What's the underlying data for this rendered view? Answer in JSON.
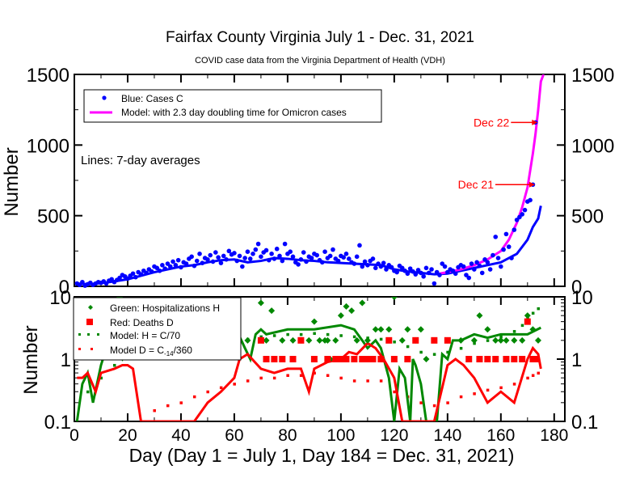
{
  "chart_data": [
    {
      "type": "scatter",
      "title": "Fairfax County Virginia July 1 - Dec. 31, 2021",
      "subtitle": "COVID case data from the Virginia Department of Health (VDH)",
      "xlabel": "",
      "ylabel": "Number",
      "xlim": [
        0,
        184
      ],
      "ylim": [
        0,
        1500
      ],
      "yticks": [
        "0",
        "500",
        "1000",
        "1500"
      ],
      "note": "Lines: 7-day averages",
      "legend_position": "top-left",
      "legend": [
        {
          "label": "Blue: Cases C",
          "color": "#0000ff",
          "marker": "dot"
        },
        {
          "label": "Model: with 2.3 day doubling time for Omicron cases",
          "color": "#ff00ff",
          "marker": "line"
        }
      ],
      "annotations": [
        {
          "text": "Dec 22",
          "x": 175,
          "y": 1160,
          "color": "#ff0000"
        },
        {
          "text": "Dec 21",
          "x": 174,
          "y": 720,
          "color": "#ff0000"
        }
      ],
      "series": [
        {
          "name": "Cases C",
          "color": "#0000ff",
          "x": [
            1,
            2,
            3,
            4,
            5,
            6,
            7,
            8,
            9,
            10,
            11,
            12,
            13,
            14,
            15,
            16,
            17,
            18,
            19,
            20,
            21,
            22,
            23,
            24,
            25,
            26,
            27,
            28,
            29,
            30,
            31,
            32,
            33,
            34,
            35,
            36,
            37,
            38,
            39,
            40,
            41,
            42,
            43,
            44,
            45,
            46,
            47,
            48,
            49,
            50,
            51,
            52,
            53,
            54,
            55,
            56,
            57,
            58,
            59,
            60,
            61,
            62,
            63,
            64,
            65,
            66,
            67,
            68,
            69,
            70,
            71,
            72,
            73,
            74,
            75,
            76,
            77,
            78,
            79,
            80,
            81,
            82,
            83,
            84,
            85,
            86,
            87,
            88,
            89,
            90,
            91,
            92,
            93,
            94,
            95,
            96,
            97,
            98,
            99,
            100,
            101,
            102,
            103,
            104,
            105,
            106,
            107,
            108,
            109,
            110,
            111,
            112,
            113,
            114,
            115,
            116,
            117,
            118,
            119,
            120,
            121,
            122,
            123,
            124,
            125,
            126,
            127,
            128,
            129,
            130,
            131,
            132,
            133,
            134,
            135,
            136,
            137,
            138,
            139,
            140,
            141,
            142,
            143,
            144,
            145,
            146,
            147,
            148,
            149,
            150,
            151,
            152,
            153,
            154,
            155,
            156,
            157,
            158,
            159,
            160,
            161,
            162,
            163,
            164,
            165,
            166,
            167,
            168,
            169,
            170,
            171,
            172,
            173,
            174,
            175
          ],
          "values": [
            20,
            10,
            30,
            5,
            15,
            25,
            10,
            20,
            30,
            25,
            35,
            20,
            40,
            50,
            30,
            45,
            60,
            80,
            70,
            55,
            75,
            90,
            65,
            100,
            85,
            110,
            95,
            120,
            105,
            140,
            130,
            110,
            150,
            125,
            160,
            140,
            175,
            150,
            185,
            135,
            170,
            160,
            195,
            210,
            145,
            180,
            230,
            165,
            200,
            190,
            220,
            175,
            240,
            205,
            165,
            215,
            190,
            250,
            225,
            235,
            180,
            215,
            140,
            200,
            245,
            195,
            230,
            260,
            300,
            210,
            240,
            255,
            185,
            230,
            195,
            265,
            215,
            180,
            300,
            230,
            245,
            210,
            170,
            155,
            190,
            240,
            175,
            210,
            200,
            230,
            220,
            185,
            170,
            245,
            200,
            215,
            260,
            195,
            180,
            215,
            205,
            230,
            195,
            170,
            160,
            210,
            290,
            140,
            175,
            150,
            180,
            195,
            130,
            160,
            140,
            165,
            120,
            150,
            135,
            110,
            100,
            145,
            130,
            110,
            90,
            125,
            105,
            85,
            115,
            95,
            70,
            130,
            95,
            120,
            20,
            100,
            80,
            160,
            140,
            100,
            120,
            110,
            90,
            135,
            150,
            140,
            80,
            60,
            160,
            120,
            170,
            145,
            95,
            190,
            170,
            120,
            220,
            350,
            200,
            140,
            260,
            370,
            280,
            200,
            400,
            470,
            490,
            510,
            540,
            600,
            610,
            720,
            1160,
            null,
            null
          ]
        },
        {
          "name": "Cases 7-day avg",
          "color": "#0000ff",
          "x": [
            1,
            5,
            10,
            15,
            20,
            25,
            30,
            35,
            40,
            45,
            50,
            55,
            60,
            65,
            70,
            75,
            80,
            85,
            90,
            95,
            100,
            105,
            110,
            115,
            120,
            125,
            130,
            135,
            140,
            145,
            150,
            155,
            160,
            163,
            166,
            168,
            170,
            172,
            174,
            175
          ],
          "values": [
            20,
            15,
            22,
            35,
            50,
            75,
            100,
            120,
            140,
            150,
            170,
            185,
            190,
            170,
            180,
            200,
            195,
            185,
            180,
            170,
            165,
            160,
            155,
            150,
            120,
            105,
            95,
            85,
            90,
            110,
            130,
            150,
            170,
            200,
            230,
            280,
            330,
            420,
            480,
            570
          ]
        },
        {
          "name": "Model (2.3 day doubling)",
          "color": "#ff00ff",
          "x": [
            137,
            140,
            145,
            150,
            155,
            160,
            163,
            166,
            168,
            170,
            172,
            173,
            174,
            175,
            176
          ],
          "values": [
            90,
            100,
            120,
            150,
            190,
            250,
            330,
            450,
            560,
            700,
            940,
            1080,
            1250,
            1450,
            1500
          ]
        }
      ]
    },
    {
      "type": "scatter",
      "xlabel": "Day (Day 1 = July 1, Day 184 = Dec. 31, 2021)",
      "ylabel": "Number",
      "yscale": "log",
      "xlim": [
        0,
        184
      ],
      "ylim": [
        0.1,
        10
      ],
      "xticks": [
        "0",
        "20",
        "40",
        "60",
        "80",
        "100",
        "120",
        "140",
        "160",
        "180"
      ],
      "yticks": [
        "0.1",
        "1",
        "10"
      ],
      "legend_position": "top-left",
      "legend": [
        {
          "label": "Green: Hospitalizations H",
          "color": "#008800",
          "marker": "diamond"
        },
        {
          "label": "Red: Deaths D",
          "color": "#ff0000",
          "marker": "square"
        },
        {
          "label": "Model: H = C/70",
          "color": "#008800",
          "marker": "dotted"
        },
        {
          "label": "Model D = C",
          "sub": "-14",
          "suffix": "/360",
          "color": "#ff0000",
          "marker": "dotted"
        }
      ],
      "series": [
        {
          "name": "Hospitalizations H",
          "color": "#008800",
          "marker": "diamond",
          "x": [
            17,
            65,
            70,
            72,
            74,
            78,
            82,
            85,
            88,
            90,
            92,
            94,
            95,
            96,
            98,
            100,
            102,
            104,
            106,
            108,
            110,
            113,
            115,
            118,
            120,
            123,
            125,
            128,
            130,
            132,
            140,
            145,
            150,
            152,
            155,
            158,
            160,
            162,
            165,
            168,
            170,
            172,
            174
          ],
          "values": [
            10,
            2,
            8,
            2,
            6,
            2,
            2,
            2,
            2,
            4,
            2,
            2,
            2,
            1,
            2,
            5,
            7,
            6,
            2,
            8,
            2,
            3,
            3,
            3,
            10,
            2,
            3,
            2,
            3,
            1,
            2,
            2,
            2,
            5,
            3,
            2,
            2,
            2,
            2,
            2,
            5,
            3,
            2
          ]
        },
        {
          "name": "Deaths D",
          "color": "#ff0000",
          "marker": "square",
          "x": [
            70,
            72,
            75,
            78,
            82,
            85,
            90,
            95,
            98,
            100,
            102,
            105,
            108,
            110,
            112,
            115,
            118,
            120,
            125,
            128,
            135,
            140,
            148,
            152,
            155,
            158,
            162,
            165,
            168,
            170,
            172,
            173
          ],
          "values": [
            2,
            1,
            1,
            1,
            1,
            2,
            1,
            1,
            1,
            1,
            1,
            1,
            1,
            1,
            1,
            1,
            2,
            1,
            1,
            2,
            2,
            2,
            1,
            1,
            1,
            1,
            1,
            1,
            1,
            4,
            1,
            1
          ]
        },
        {
          "name": "Hospitalizations 7-day avg",
          "color": "#008800",
          "x": [
            1,
            3,
            5,
            7,
            10,
            12,
            15,
            18,
            20,
            62,
            64,
            66,
            68,
            70,
            72,
            80,
            90,
            100,
            105,
            108,
            110,
            113,
            115,
            118,
            120,
            122,
            124,
            126,
            127,
            128,
            130,
            132,
            134,
            136,
            138,
            140,
            142,
            145,
            150,
            155,
            160,
            165,
            170,
            175
          ],
          "values": [
            0.1,
            0.4,
            0.6,
            0.2,
            0.8,
            1.5,
            1.5,
            1.0,
            1.5,
            2.3,
            1.5,
            1.0,
            2.5,
            3.0,
            2.5,
            3.0,
            3.0,
            3.5,
            3.0,
            2.0,
            1.5,
            2.0,
            1.5,
            0.5,
            0.1,
            0.7,
            0.5,
            0.1,
            1.0,
            0.8,
            0.4,
            0.1,
            0.1,
            0.1,
            1.2,
            1.0,
            2.0,
            2.0,
            2.5,
            2.2,
            2.5,
            2.5,
            2.5,
            3.2
          ]
        },
        {
          "name": "Deaths 7-day avg",
          "color": "#ff0000",
          "x": [
            1,
            3,
            5,
            8,
            10,
            15,
            18,
            20,
            22,
            25,
            28,
            30,
            35,
            40,
            45,
            50,
            55,
            60,
            62,
            65,
            70,
            75,
            80,
            85,
            88,
            90,
            95,
            100,
            103,
            106,
            110,
            113,
            116,
            120,
            123,
            126,
            130,
            135,
            140,
            143,
            146,
            150,
            155,
            160,
            165,
            170,
            172,
            174,
            175
          ],
          "values": [
            0.5,
            0.5,
            0.6,
            0.3,
            0.6,
            0.7,
            0.8,
            0.8,
            0.7,
            0.1,
            0.1,
            0.1,
            0.1,
            0.1,
            0.1,
            0.2,
            0.3,
            0.5,
            1.0,
            1.2,
            0.7,
            0.6,
            0.7,
            0.7,
            0.3,
            0.7,
            0.9,
            1.0,
            1.3,
            1.2,
            1.8,
            1.5,
            1.0,
            0.5,
            0.1,
            0.1,
            0.1,
            0.1,
            0.8,
            1.0,
            0.8,
            0.5,
            0.2,
            0.3,
            0.2,
            1.0,
            1.5,
            1.2,
            0.7
          ]
        },
        {
          "name": "Model H = C/70",
          "color": "#008800",
          "marker": "dotted",
          "x": [
            5,
            10,
            15,
            20,
            25,
            30,
            35,
            40,
            45,
            50,
            55,
            60,
            65,
            70,
            75,
            80,
            85,
            90,
            95,
            100,
            105,
            110,
            115,
            120,
            125,
            130,
            135,
            140,
            145,
            150,
            155,
            160,
            165,
            168,
            170,
            172,
            174
          ],
          "values": [
            0.3,
            0.5,
            0.8,
            1.1,
            1.2,
            1.3,
            1.4,
            1.5,
            1.6,
            1.8,
            1.9,
            2.0,
            2.1,
            2.3,
            2.4,
            2.5,
            2.5,
            2.6,
            2.5,
            2.4,
            2.3,
            2.2,
            2.1,
            1.9,
            1.6,
            1.3,
            1.2,
            1.3,
            1.5,
            1.8,
            2.0,
            2.3,
            2.8,
            3.5,
            4.5,
            5.5,
            6.5
          ]
        },
        {
          "name": "Model D = C-14/360",
          "color": "#ff0000",
          "marker": "dotted",
          "x": [
            30,
            35,
            40,
            45,
            50,
            55,
            60,
            65,
            70,
            75,
            80,
            85,
            90,
            95,
            100,
            105,
            110,
            115,
            120,
            125,
            130,
            135,
            140,
            145,
            150,
            155,
            160,
            165,
            170,
            172,
            174
          ],
          "values": [
            0.15,
            0.18,
            0.2,
            0.25,
            0.3,
            0.35,
            0.4,
            0.45,
            0.5,
            0.5,
            0.55,
            0.55,
            0.6,
            0.55,
            0.5,
            0.45,
            0.45,
            0.45,
            0.3,
            0.25,
            0.2,
            0.18,
            0.2,
            0.25,
            0.28,
            0.32,
            0.35,
            0.4,
            0.5,
            0.55,
            0.6
          ]
        }
      ]
    }
  ]
}
